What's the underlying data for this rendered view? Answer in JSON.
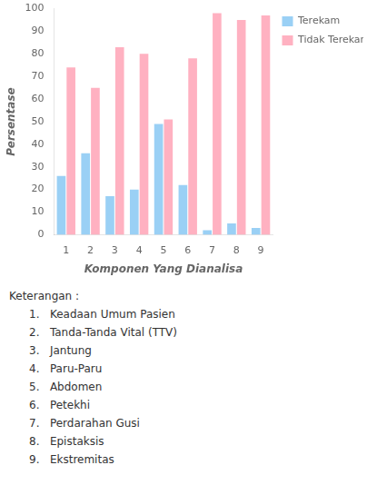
{
  "chart_data": {
    "type": "bar",
    "categories": [
      1,
      2,
      3,
      4,
      5,
      6,
      7,
      8,
      9
    ],
    "series": [
      {
        "name": "Terekam",
        "values": [
          26,
          36,
          17,
          20,
          49,
          22,
          2,
          5,
          3
        ]
      },
      {
        "name": "Tidak Terekam",
        "values": [
          74,
          65,
          83,
          80,
          51,
          78,
          98,
          95,
          97
        ]
      }
    ],
    "xlabel": "Komponen Yang Dianalisa",
    "ylabel": "Persentase",
    "ylim": [
      0,
      100
    ],
    "yticks": [
      0,
      10,
      20,
      30,
      40,
      50,
      60,
      70,
      80,
      90,
      100
    ],
    "grid": false,
    "legend": "right",
    "annotations": [
      "Keterangan :",
      "1.   Keadaan Umum Pasien",
      "2.   Tanda-Tanda Vital (TTV)",
      "3.   Jantung",
      "4.   Paru-Paru",
      "5.   Abdomen",
      "6.   Petekhi",
      "7.   Perdarahan Gusi",
      "8.   Epistaksis",
      "9.   Ekstremitas"
    ]
  }
}
